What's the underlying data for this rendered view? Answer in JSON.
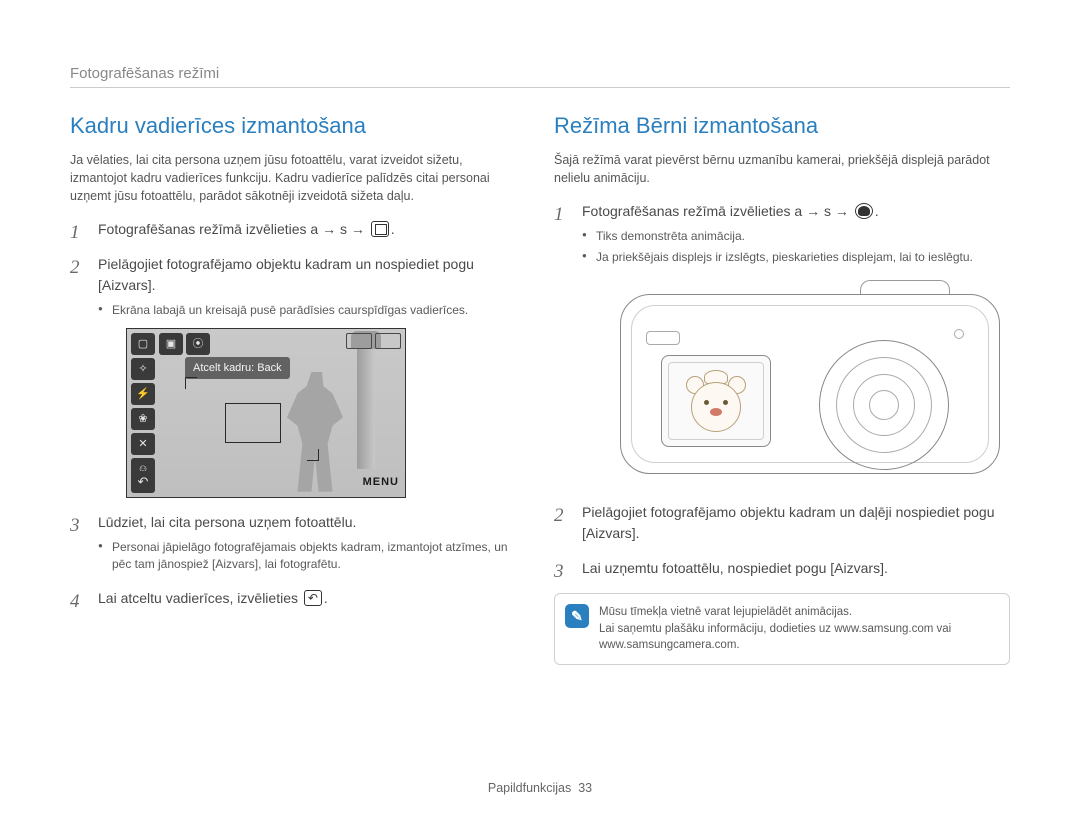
{
  "breadcrumb": "Fotografēšanas režīmi",
  "left": {
    "title": "Kadru vadierīces izmantošana",
    "intro": "Ja vēlaties, lai cita persona uzņem jūsu fotoattēlu, varat izveidot sižetu, izmantojot kadru vadierīces funkciju. Kadru vadierīce palīdzēs citai personai uzņemt jūsu fotoattēlu, parādot sākotnēji izveidotā sižeta daļu.",
    "step1": "Fotografēšanas režīmā izvēlieties a  → s  → ",
    "step2": "Pielāgojiet fotografējamo objektu kadram un nospiediet pogu [Aizvars].",
    "step2_b1": "Ekrāna labajā un kreisajā pusē parādīsies caurspīdīgas vadierīces.",
    "screen_caption": "Atcelt kadru: Back",
    "screen_menu": "MENU",
    "step3": "Lūdziet, lai cita persona uzņem fotoattēlu.",
    "step3_b1": "Personai jāpielāgo fotografējamais objekts kadram, izmantojot atzīmes, un pēc tam jānospiež [Aizvars], lai fotografētu.",
    "step4": "Lai atceltu vadierīces, izvēlieties "
  },
  "right": {
    "title": "Režīma Bērni izmantošana",
    "intro": "Šajā režīmā varat pievērst bērnu uzmanību kamerai, priekšējā displejā parādot nelielu animāciju.",
    "step1": "Fotografēšanas režīmā izvēlieties a  → s  → ",
    "step1_b1": "Tiks demonstrēta animācija.",
    "step1_b2": "Ja priekšējais displejs ir izslēgts, pieskarieties displejam, lai to ieslēgtu.",
    "step2": "Pielāgojiet fotografējamo objektu kadram un daļēji nospiediet pogu [Aizvars].",
    "step3": "Lai uzņemtu fotoattēlu, nospiediet pogu [Aizvars].",
    "note1": "Mūsu tīmekļa vietnē varat lejupielādēt animācijas.",
    "note2": "Lai saņemtu plašāku informāciju, dodieties uz www.samsung.com vai www.samsungcamera.com."
  },
  "footer": {
    "label": "Papildfunkcijas",
    "page": "33"
  }
}
